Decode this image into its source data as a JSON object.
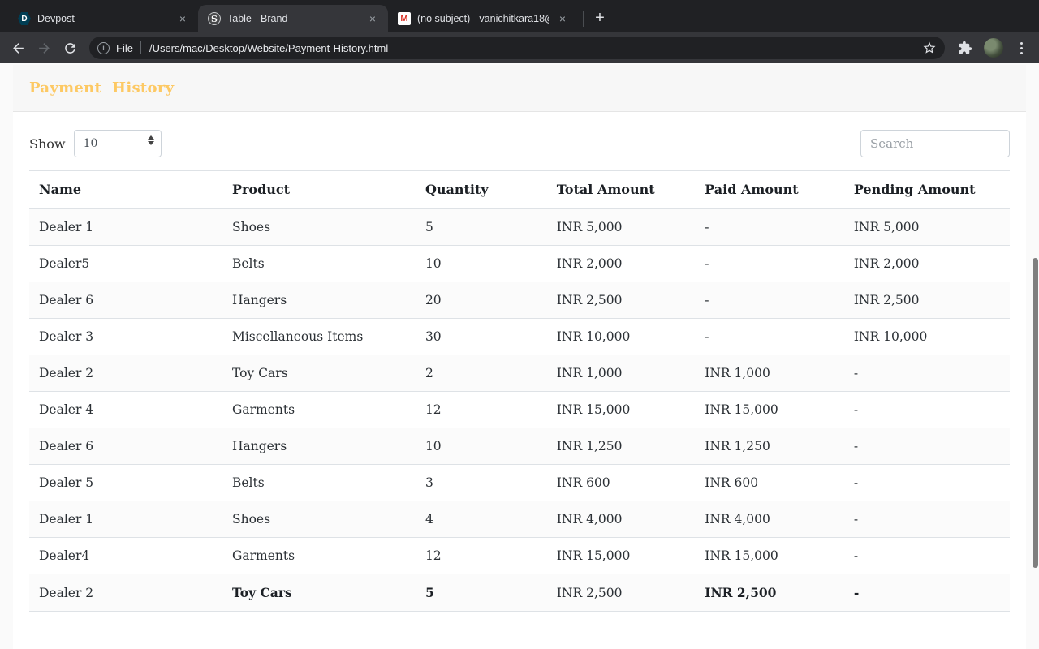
{
  "browser": {
    "tabs": [
      {
        "title": "Devpost",
        "favicon_letter": "D"
      },
      {
        "title": "Table - Brand",
        "favicon_letter": "S"
      },
      {
        "title": "(no subject) - vanichitkara18@",
        "favicon_letter": "M"
      }
    ],
    "close_glyph": "×",
    "new_tab_glyph": "+",
    "urlbar": {
      "info_glyph": "i",
      "scheme_label": "File",
      "path": "/Users/mac/Desktop/Website/Payment-History.html"
    }
  },
  "page": {
    "title": "Payment History",
    "controls": {
      "show_label": "Show",
      "page_size": "10",
      "search_placeholder": "Search"
    },
    "table": {
      "columns": [
        "Name",
        "Product",
        "Quantity",
        "Total Amount",
        "Paid Amount",
        "Pending Amount"
      ],
      "rows": [
        {
          "cells": [
            "Dealer 1",
            "Shoes",
            "5",
            "INR 5,000",
            "-",
            "INR 5,000"
          ]
        },
        {
          "cells": [
            "Dealer5",
            "Belts",
            "10",
            "INR 2,000",
            "-",
            "INR 2,000"
          ]
        },
        {
          "cells": [
            "Dealer 6",
            "Hangers",
            "20",
            "INR 2,500",
            "-",
            "INR 2,500"
          ]
        },
        {
          "cells": [
            "Dealer 3",
            "Miscellaneous Items",
            "30",
            "INR 10,000",
            "-",
            "INR 10,000"
          ]
        },
        {
          "cells": [
            "Dealer 2",
            "Toy Cars",
            "2",
            "INR 1,000",
            "INR 1,000",
            "-"
          ]
        },
        {
          "cells": [
            "Dealer 4",
            "Garments",
            "12",
            "INR 15,000",
            "INR 15,000",
            "-"
          ]
        },
        {
          "cells": [
            "Dealer 6",
            "Hangers",
            "10",
            "INR 1,250",
            "INR 1,250",
            "-"
          ]
        },
        {
          "cells": [
            "Dealer 5",
            "Belts",
            "3",
            "INR 600",
            "INR 600",
            "-"
          ]
        },
        {
          "cells": [
            "Dealer 1",
            "Shoes",
            "4",
            "INR 4,000",
            "INR 4,000",
            "-"
          ]
        },
        {
          "cells": [
            "Dealer4",
            "Garments",
            "12",
            "INR 15,000",
            "INR 15,000",
            "-"
          ]
        },
        {
          "cells": [
            "Dealer 2",
            "Toy Cars",
            "5",
            "INR 2,500",
            "INR 2,500",
            "-"
          ],
          "bold": [
            false,
            true,
            true,
            false,
            true,
            true
          ]
        }
      ]
    },
    "colors": {
      "accent": "#fdc964",
      "header_bg": "#f7f7f7",
      "row_border": "#dee2e6"
    }
  }
}
